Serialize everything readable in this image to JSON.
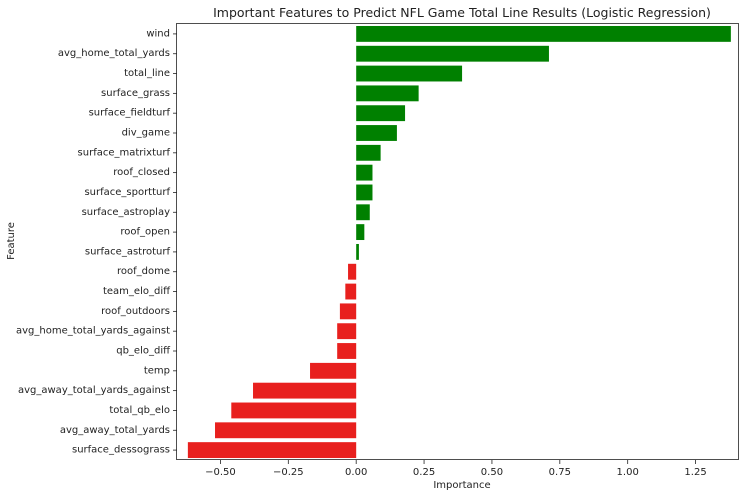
{
  "chart_data": {
    "type": "bar",
    "orientation": "horizontal",
    "title": "Important Features to Predict NFL Game Total Line Results (Logistic Regression)",
    "xlabel": "Importance",
    "ylabel": "Feature",
    "xlim": [
      -0.66,
      1.41
    ],
    "xticks": [
      -0.5,
      -0.25,
      0.0,
      0.25,
      0.5,
      0.75,
      1.0,
      1.25
    ],
    "xtick_labels": [
      "−0.50",
      "−0.25",
      "0.00",
      "0.25",
      "0.50",
      "0.75",
      "1.00",
      "1.25"
    ],
    "grid": false,
    "colors": {
      "positive": "#008000",
      "negative": "#e8201e"
    },
    "categories": [
      "wind",
      "avg_home_total_yards",
      "total_line",
      "surface_grass",
      "surface_fieldturf",
      "div_game",
      "surface_matrixturf",
      "roof_closed",
      "surface_sportturf",
      "surface_astroplay",
      "roof_open",
      "surface_astroturf",
      "roof_dome",
      "team_elo_diff",
      "roof_outdoors",
      "avg_home_total_yards_against",
      "qb_elo_diff",
      "temp",
      "avg_away_total_yards_against",
      "total_qb_elo",
      "avg_away_total_yards",
      "surface_dessograss"
    ],
    "values": [
      1.38,
      0.71,
      0.39,
      0.23,
      0.18,
      0.15,
      0.09,
      0.06,
      0.06,
      0.05,
      0.03,
      0.01,
      -0.03,
      -0.04,
      -0.06,
      -0.07,
      -0.07,
      -0.17,
      -0.38,
      -0.46,
      -0.52,
      -0.62
    ]
  }
}
